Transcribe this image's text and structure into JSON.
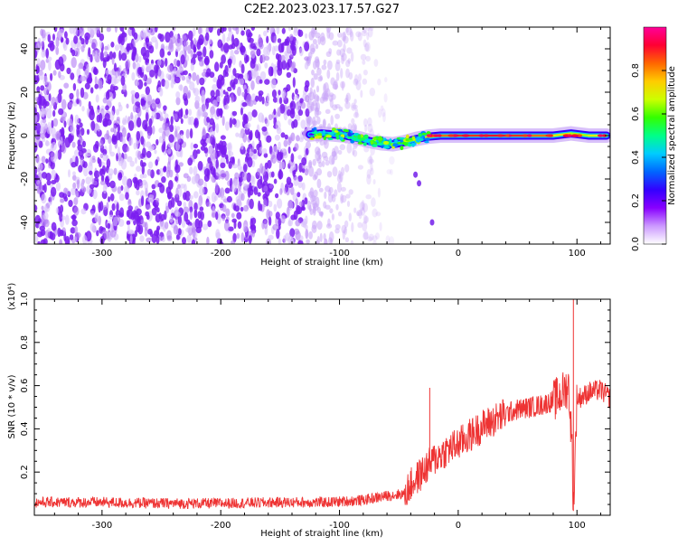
{
  "figure": {
    "title": "C2E2.2023.023.17.57.G27"
  },
  "chart_data": [
    {
      "type": "heatmap",
      "name": "spectrogram",
      "xlabel": "Height of straight line (km)",
      "ylabel": "Frequency (Hz)",
      "xlim": [
        -357,
        128
      ],
      "ylim": [
        -50,
        50
      ],
      "xticks": [
        -300,
        -200,
        -100,
        0,
        100
      ],
      "yticks": [
        -40,
        -20,
        0,
        20,
        40
      ],
      "colorbar": {
        "label": "Normalized spectral amplitude",
        "range": [
          0.0,
          1.0
        ],
        "ticks": [
          0.0,
          0.2,
          0.4,
          0.6,
          0.8
        ],
        "tick_labels": [
          "0.0",
          "0.2",
          "0.4",
          "0.6",
          "0.8"
        ],
        "colormap": [
          "#ffffff",
          "#cc99ff",
          "#8800ff",
          "#3300ff",
          "#0066ff",
          "#00ccff",
          "#00ff88",
          "#33ff00",
          "#ccff00",
          "#ffcc00",
          "#ff6600",
          "#ff0033",
          "#ff0099"
        ]
      },
      "signal_track": [
        {
          "x": -125,
          "freq": 0.5,
          "amp": 0.15
        },
        {
          "x": -115,
          "freq": 1.0,
          "amp": 0.3
        },
        {
          "x": -105,
          "freq": 0.5,
          "amp": 0.4
        },
        {
          "x": -95,
          "freq": 0.0,
          "amp": 0.35
        },
        {
          "x": -85,
          "freq": -1.0,
          "amp": 0.4
        },
        {
          "x": -75,
          "freq": -2.5,
          "amp": 0.45
        },
        {
          "x": -65,
          "freq": -3.5,
          "amp": 0.5
        },
        {
          "x": -55,
          "freq": -4.0,
          "amp": 0.55
        },
        {
          "x": -45,
          "freq": -3.0,
          "amp": 0.6
        },
        {
          "x": -35,
          "freq": -1.5,
          "amp": 0.65
        },
        {
          "x": -25,
          "freq": -0.5,
          "amp": 0.75
        },
        {
          "x": -15,
          "freq": 0.0,
          "amp": 0.8
        },
        {
          "x": 0,
          "freq": 0.0,
          "amp": 0.85
        },
        {
          "x": 20,
          "freq": 0.0,
          "amp": 0.9
        },
        {
          "x": 40,
          "freq": 0.0,
          "amp": 0.9
        },
        {
          "x": 60,
          "freq": 0.0,
          "amp": 0.85
        },
        {
          "x": 80,
          "freq": 0.0,
          "amp": 0.8
        },
        {
          "x": 95,
          "freq": 1.0,
          "amp": 0.6
        },
        {
          "x": 110,
          "freq": 0.0,
          "amp": 0.7
        },
        {
          "x": 125,
          "freq": 0.0,
          "amp": 0.7
        }
      ],
      "noise_region_x": [
        -357,
        -55
      ]
    },
    {
      "type": "line",
      "name": "snr",
      "xlabel": "Height of straight line (km)",
      "ylabel": "SNR (10 * v/v)",
      "y_scale_label": "(x10⁴)",
      "xlim": [
        -357,
        128
      ],
      "ylim": [
        0,
        1.0
      ],
      "xticks": [
        -300,
        -200,
        -100,
        0,
        100
      ],
      "yticks": [
        0.2,
        0.4,
        0.6,
        0.8,
        1.0
      ],
      "ytick_labels": [
        "0.2",
        "0.4",
        "0.6",
        "0.8",
        "1.0"
      ],
      "color": "#ee3333",
      "series": [
        {
          "x": [
            -357,
            -300,
            -250,
            -200,
            -150,
            -110,
            -80,
            -60,
            -45,
            -40,
            -30,
            -20,
            -10,
            0,
            10,
            20,
            30,
            40,
            50,
            60,
            70,
            80,
            85,
            90,
            93,
            96,
            97,
            100,
            105,
            110,
            120,
            128
          ],
          "y": [
            0.06,
            0.06,
            0.055,
            0.055,
            0.06,
            0.06,
            0.07,
            0.09,
            0.1,
            0.14,
            0.2,
            0.26,
            0.3,
            0.33,
            0.37,
            0.41,
            0.44,
            0.47,
            0.49,
            0.5,
            0.51,
            0.53,
            0.55,
            0.58,
            0.6,
            0.3,
            0.02,
            0.54,
            0.55,
            0.57,
            0.58,
            0.54
          ]
        }
      ],
      "spikes": [
        {
          "x": -24,
          "y": 0.59
        },
        {
          "x": 97,
          "y": 1.0
        }
      ]
    }
  ]
}
